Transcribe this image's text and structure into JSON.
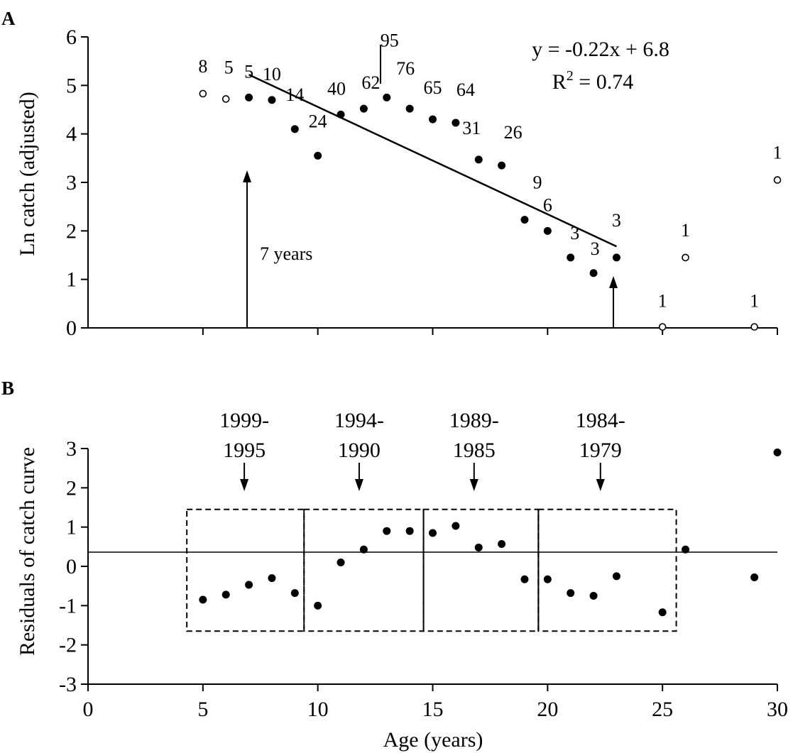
{
  "chart_data": [
    {
      "panel": "A",
      "type": "scatter",
      "ylabel": "Ln catch (adjusted)",
      "xlim": [
        0,
        30
      ],
      "ylim": [
        0,
        6
      ],
      "yticks": [
        "0",
        "1",
        "2",
        "3",
        "4",
        "5",
        "6"
      ],
      "grid": false,
      "series": [
        {
          "marker": "filled",
          "points": [
            {
              "x": 7,
              "y": 4.75,
              "label": "5"
            },
            {
              "x": 8,
              "y": 4.7,
              "label": "10"
            },
            {
              "x": 9,
              "y": 4.1,
              "label": "14"
            },
            {
              "x": 10,
              "y": 3.55,
              "label": "24"
            },
            {
              "x": 11,
              "y": 4.4,
              "label": "40"
            },
            {
              "x": 12,
              "y": 4.52,
              "label": "62"
            },
            {
              "x": 13,
              "y": 4.75,
              "label": "95"
            },
            {
              "x": 14,
              "y": 4.52,
              "label": "76"
            },
            {
              "x": 15,
              "y": 4.3,
              "label": "65"
            },
            {
              "x": 16,
              "y": 4.23,
              "label": "64"
            },
            {
              "x": 17,
              "y": 3.47,
              "label": "31"
            },
            {
              "x": 18,
              "y": 3.35,
              "label": "26"
            },
            {
              "x": 19,
              "y": 2.23,
              "label": "9"
            },
            {
              "x": 20,
              "y": 2.0,
              "label": "6"
            },
            {
              "x": 21,
              "y": 1.45,
              "label": "3"
            },
            {
              "x": 22,
              "y": 1.13,
              "label": "3"
            },
            {
              "x": 23,
              "y": 1.45,
              "label": "3"
            }
          ]
        },
        {
          "marker": "open",
          "points": [
            {
              "x": 5,
              "y": 4.83,
              "label": "8"
            },
            {
              "x": 6,
              "y": 4.72,
              "label": "5"
            },
            {
              "x": 25,
              "y": 0.02,
              "label": "1"
            },
            {
              "x": 26,
              "y": 1.45,
              "label": "1"
            },
            {
              "x": 29,
              "y": 0.02,
              "label": "1"
            },
            {
              "x": 30,
              "y": 3.05,
              "label": "1"
            }
          ]
        }
      ],
      "regression": {
        "x": [
          7,
          23
        ],
        "y": [
          5.22,
          1.68
        ]
      },
      "annotations": {
        "equation": "y = -0.22x + 6.8",
        "r2_prefix": "R",
        "r2_exp": "2",
        "r2_suffix": " = 0.74",
        "arrow_label": "7 years"
      }
    },
    {
      "panel": "B",
      "type": "scatter",
      "ylabel": "Residuals of catch curve",
      "xlabel": "Age (years)",
      "xlim": [
        0,
        30
      ],
      "ylim": [
        -3,
        3
      ],
      "xticks": [
        "0",
        "5",
        "10",
        "15",
        "20",
        "25",
        "30"
      ],
      "yticks": [
        "-3",
        "-2",
        "-1",
        "0",
        "1",
        "2",
        "3"
      ],
      "grid": false,
      "points": [
        {
          "x": 5,
          "y": -0.85
        },
        {
          "x": 6,
          "y": -0.72
        },
        {
          "x": 7,
          "y": -0.47
        },
        {
          "x": 8,
          "y": -0.3
        },
        {
          "x": 9,
          "y": -0.68
        },
        {
          "x": 10,
          "y": -1.0
        },
        {
          "x": 11,
          "y": 0.1
        },
        {
          "x": 12,
          "y": 0.43
        },
        {
          "x": 13,
          "y": 0.9
        },
        {
          "x": 14,
          "y": 0.9
        },
        {
          "x": 15,
          "y": 0.85
        },
        {
          "x": 16,
          "y": 1.03
        },
        {
          "x": 17,
          "y": 0.48
        },
        {
          "x": 18,
          "y": 0.57
        },
        {
          "x": 19,
          "y": -0.33
        },
        {
          "x": 20,
          "y": -0.33
        },
        {
          "x": 21,
          "y": -0.68
        },
        {
          "x": 22,
          "y": -0.75
        },
        {
          "x": 23,
          "y": -0.25
        },
        {
          "x": 25,
          "y": -1.17
        },
        {
          "x": 26,
          "y": 0.43
        },
        {
          "x": 29,
          "y": -0.28
        },
        {
          "x": 30,
          "y": 2.9
        }
      ],
      "period_boxes": [
        {
          "x_start": 4.3,
          "x_end": 9.4,
          "top": "1999-",
          "bottom": "1995",
          "arrow_x": 6.8
        },
        {
          "x_start": 9.4,
          "x_end": 14.6,
          "top": "1994-",
          "bottom": "1990",
          "arrow_x": 11.8
        },
        {
          "x_start": 14.6,
          "x_end": 19.6,
          "top": "1989-",
          "bottom": "1985",
          "arrow_x": 16.8
        },
        {
          "x_start": 19.6,
          "x_end": 25.6,
          "top": "1984-",
          "bottom": "1979",
          "arrow_x": 22.3
        }
      ],
      "box_y": [
        -1.65,
        1.45
      ]
    }
  ]
}
